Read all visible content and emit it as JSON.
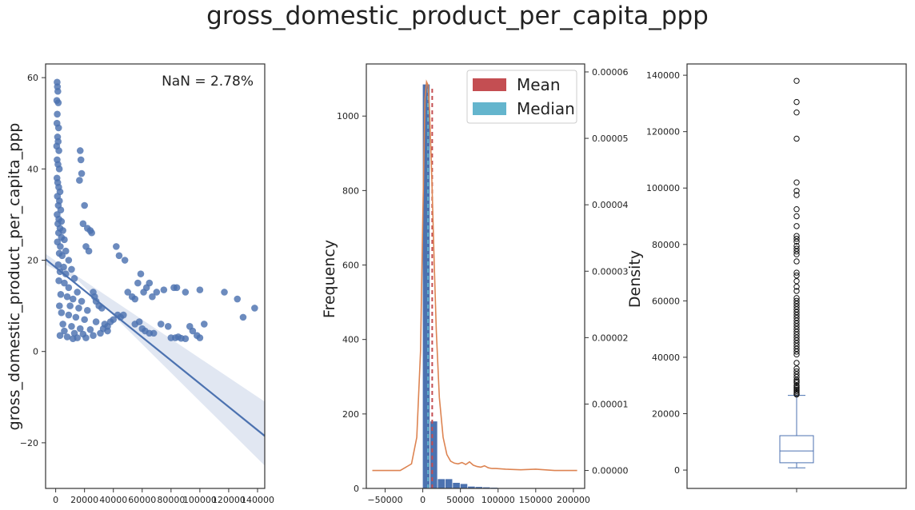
{
  "figure": {
    "title": "gross_domestic_product_per_capita_ppp",
    "colors": {
      "points": "#4c72b0",
      "kde": "#dd8452",
      "mean": "#c44e52",
      "median": "#64b5cd",
      "box": "#4c72b0",
      "frame": "#333333"
    }
  },
  "chart_data": [
    {
      "type": "scatter",
      "title": "",
      "annotation": "NaN = 2.78%",
      "xlabel": "",
      "ylabel": "gross_domestic_product_per_capita_ppp",
      "xlim": [
        -7000,
        145000
      ],
      "ylim": [
        -30,
        63
      ],
      "xticks": [
        0,
        20000,
        40000,
        60000,
        80000,
        100000,
        120000,
        140000
      ],
      "yticks": [
        -20,
        0,
        20,
        40,
        60
      ],
      "regression": {
        "x": [
          -7000,
          145000
        ],
        "y": [
          20.2,
          -18.5
        ],
        "ci_upper_end": -11,
        "ci_lower_end": -25
      },
      "points": [
        [
          1000,
          59
        ],
        [
          1200,
          58
        ],
        [
          1500,
          57
        ],
        [
          800,
          55
        ],
        [
          1800,
          54.5
        ],
        [
          1100,
          52
        ],
        [
          900,
          50
        ],
        [
          2000,
          49
        ],
        [
          1300,
          47
        ],
        [
          1700,
          46
        ],
        [
          700,
          45
        ],
        [
          2200,
          44
        ],
        [
          1000,
          42
        ],
        [
          1600,
          41
        ],
        [
          2500,
          40
        ],
        [
          900,
          38
        ],
        [
          1400,
          37
        ],
        [
          2100,
          36
        ],
        [
          3000,
          35
        ],
        [
          1200,
          34
        ],
        [
          2600,
          33
        ],
        [
          1800,
          32
        ],
        [
          3500,
          31
        ],
        [
          1000,
          30
        ],
        [
          2200,
          29
        ],
        [
          4000,
          28.5
        ],
        [
          1500,
          28
        ],
        [
          3000,
          27
        ],
        [
          5000,
          26.5
        ],
        [
          2000,
          26
        ],
        [
          4000,
          25
        ],
        [
          6000,
          24.5
        ],
        [
          1200,
          24
        ],
        [
          3200,
          23
        ],
        [
          7000,
          22
        ],
        [
          2500,
          21.5
        ],
        [
          4500,
          21
        ],
        [
          9000,
          20
        ],
        [
          1800,
          19
        ],
        [
          5500,
          18.5
        ],
        [
          11000,
          18
        ],
        [
          3000,
          17.5
        ],
        [
          7000,
          17
        ],
        [
          13000,
          16
        ],
        [
          2200,
          15.5
        ],
        [
          6000,
          15
        ],
        [
          9000,
          14
        ],
        [
          15000,
          13
        ],
        [
          3500,
          12.5
        ],
        [
          8000,
          12
        ],
        [
          12000,
          11.5
        ],
        [
          18000,
          11
        ],
        [
          2600,
          10
        ],
        [
          10000,
          10
        ],
        [
          16000,
          9.5
        ],
        [
          22000,
          9
        ],
        [
          4000,
          8.5
        ],
        [
          9000,
          8
        ],
        [
          14000,
          7.5
        ],
        [
          20000,
          7
        ],
        [
          28000,
          6.5
        ],
        [
          5000,
          6
        ],
        [
          11000,
          5.5
        ],
        [
          17000,
          5
        ],
        [
          24000,
          4.8
        ],
        [
          6000,
          4.5
        ],
        [
          13000,
          4
        ],
        [
          19000,
          3.8
        ],
        [
          26000,
          3.5
        ],
        [
          3000,
          3.5
        ],
        [
          8000,
          3.2
        ],
        [
          15000,
          3
        ],
        [
          21000,
          3
        ],
        [
          12000,
          2.8
        ],
        [
          17000,
          44
        ],
        [
          18000,
          39
        ],
        [
          16500,
          37.5
        ],
        [
          17500,
          42
        ],
        [
          20000,
          32
        ],
        [
          19000,
          28
        ],
        [
          22000,
          27
        ],
        [
          24000,
          26.5
        ],
        [
          25000,
          26
        ],
        [
          21000,
          23
        ],
        [
          23000,
          22
        ],
        [
          26000,
          13
        ],
        [
          27000,
          12
        ],
        [
          28000,
          11
        ],
        [
          30000,
          10
        ],
        [
          32000,
          9.5
        ],
        [
          34000,
          6
        ],
        [
          36000,
          5.5
        ],
        [
          38000,
          6.5
        ],
        [
          40000,
          7
        ],
        [
          43000,
          8
        ],
        [
          45000,
          7.5
        ],
        [
          47000,
          8
        ],
        [
          42000,
          23
        ],
        [
          44000,
          21
        ],
        [
          48000,
          20
        ],
        [
          50000,
          13
        ],
        [
          53000,
          12
        ],
        [
          55000,
          11.5
        ],
        [
          57000,
          15
        ],
        [
          59000,
          17
        ],
        [
          61000,
          13
        ],
        [
          63000,
          14
        ],
        [
          65000,
          15
        ],
        [
          67000,
          12
        ],
        [
          70000,
          13
        ],
        [
          75000,
          13.5
        ],
        [
          82000,
          14
        ],
        [
          84000,
          14
        ],
        [
          90000,
          13
        ],
        [
          100000,
          13.5
        ],
        [
          117000,
          13
        ],
        [
          126000,
          11.5
        ],
        [
          130000,
          7.5
        ],
        [
          138000,
          9.5
        ],
        [
          55000,
          6
        ],
        [
          60000,
          5
        ],
        [
          62000,
          4.5
        ],
        [
          65000,
          4
        ],
        [
          68000,
          4
        ],
        [
          73000,
          6
        ],
        [
          78000,
          5.5
        ],
        [
          80000,
          3
        ],
        [
          83000,
          3
        ],
        [
          85000,
          3.2
        ],
        [
          87000,
          2.9
        ],
        [
          90000,
          2.8
        ],
        [
          93000,
          5.5
        ],
        [
          95000,
          4.5
        ],
        [
          98000,
          3.5
        ],
        [
          100000,
          3
        ],
        [
          103000,
          6
        ],
        [
          58000,
          6.5
        ],
        [
          36000,
          4.5
        ],
        [
          33000,
          5
        ],
        [
          31000,
          4
        ]
      ]
    },
    {
      "type": "bar",
      "title": "",
      "xlabel": "",
      "ylabel": "Frequency",
      "y2label": "Density",
      "xlim": [
        -75000,
        215000
      ],
      "ylim": [
        0,
        1140
      ],
      "y2lim": [
        -2.7e-06,
        6.12e-05
      ],
      "xticks": [
        -50000,
        0,
        50000,
        100000,
        150000,
        200000
      ],
      "yticks": [
        0,
        200,
        400,
        600,
        800,
        1000
      ],
      "y2ticks": [
        "0.00000",
        "0.00001",
        "0.00002",
        "0.00003",
        "0.00004",
        "0.00005",
        "0.00006"
      ],
      "bin_edges": [
        0,
        10000,
        20000,
        30000,
        40000,
        50000,
        60000,
        70000,
        80000,
        90000,
        100000,
        110000,
        120000,
        130000,
        140000
      ],
      "values": [
        1085,
        180,
        25,
        25,
        15,
        12,
        5,
        4,
        3,
        2,
        1,
        1,
        1,
        1
      ],
      "mean": 12500,
      "median": 7000,
      "legend": [
        "Mean",
        "Median"
      ],
      "legend_position": "top-right",
      "kde": {
        "x": [
          -67000,
          -30000,
          -15000,
          -8000,
          -3000,
          0,
          3000,
          5000,
          7000,
          9000,
          12000,
          15000,
          18000,
          22000,
          27000,
          32000,
          37000,
          42000,
          47000,
          52000,
          57000,
          62000,
          67000,
          72000,
          77000,
          82000,
          87000,
          92000,
          97000,
          110000,
          130000,
          150000,
          175000,
          205000
        ],
        "y": [
          0.0,
          0.0,
          1e-06,
          5e-06,
          1.8e-05,
          3.8e-05,
          5.6e-05,
          5.85e-05,
          5.8e-05,
          5.4e-05,
          4.4e-05,
          3.2e-05,
          2.1e-05,
          1.1e-05,
          5e-06,
          2.4e-06,
          1.4e-06,
          1.1e-06,
          1e-06,
          1.2e-06,
          9e-07,
          1.3e-06,
          8e-07,
          6e-07,
          5e-07,
          7e-07,
          4e-07,
          3e-07,
          3e-07,
          2e-07,
          1e-07,
          2e-07,
          0.0,
          0.0
        ]
      }
    },
    {
      "type": "box",
      "title": "",
      "xlabel": "",
      "ylabel": "",
      "ylim": [
        -6500,
        144000
      ],
      "yticks": [
        0,
        20000,
        40000,
        60000,
        80000,
        100000,
        120000,
        140000
      ],
      "whisker_low": 800,
      "q1": 2600,
      "median": 6800,
      "q3": 12200,
      "whisker_high": 26500,
      "outliers": [
        138000,
        130500,
        126800,
        117500,
        102000,
        99000,
        97500,
        92500,
        90000,
        86500,
        83000,
        82000,
        81000,
        79500,
        78500,
        77500,
        76500,
        74000,
        70000,
        69000,
        67000,
        65000,
        63500,
        61000,
        60000,
        59000,
        58000,
        57000,
        56000,
        55000,
        54000,
        53000,
        52000,
        51000,
        50000,
        49000,
        48000,
        47000,
        46000,
        45000,
        44000,
        43000,
        42000,
        41000,
        38000,
        36000,
        35000,
        34000,
        33000,
        32000,
        31500,
        31000,
        30000,
        29500,
        29000,
        28500,
        28000,
        27500,
        27000,
        26800
      ]
    }
  ]
}
